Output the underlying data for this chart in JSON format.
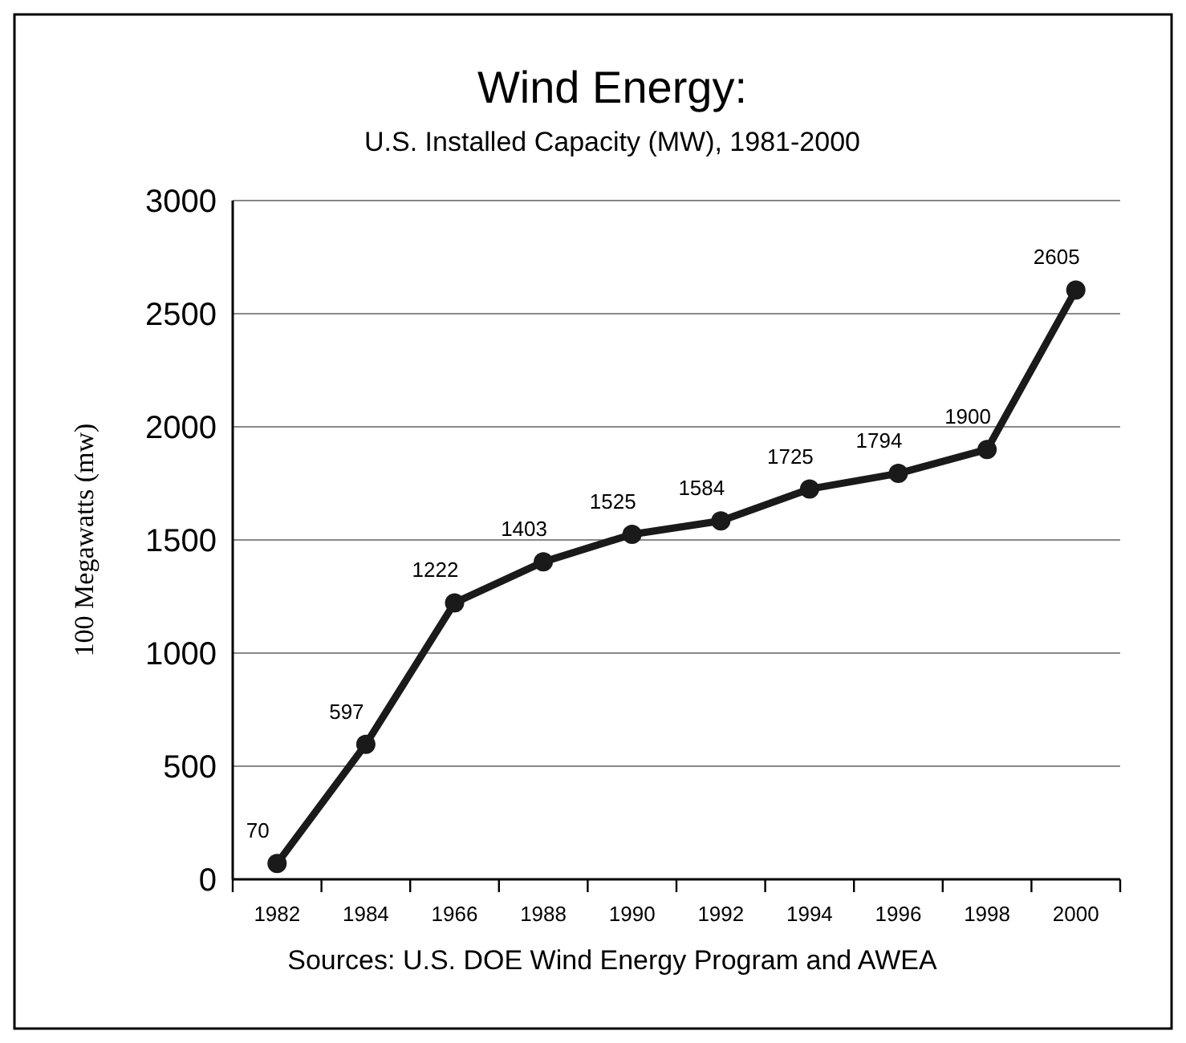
{
  "chart_data": {
    "type": "line",
    "title": "Wind Energy:",
    "subtitle": "U.S. Installed Capacity (MW), 1981-2000",
    "ylabel": "100 Megawatts (mw)",
    "categories": [
      "1982",
      "1984",
      "1966",
      "1988",
      "1990",
      "1992",
      "1994",
      "1996",
      "1998",
      "2000"
    ],
    "series": [
      {
        "color": "#1a1a1a",
        "values": [
          70,
          597,
          1222,
          1403,
          1525,
          1584,
          1725,
          1794,
          1900,
          2605
        ]
      }
    ],
    "ylim": [
      0,
      3000
    ],
    "yticks": [
      0,
      500,
      1000,
      1500,
      2000,
      2500,
      3000
    ],
    "grid": "y",
    "marker": "circle",
    "line_style": "solid",
    "data_labels": true,
    "annotations": [
      "Sources: U.S. DOE Wind Energy Program and AWEA"
    ]
  }
}
